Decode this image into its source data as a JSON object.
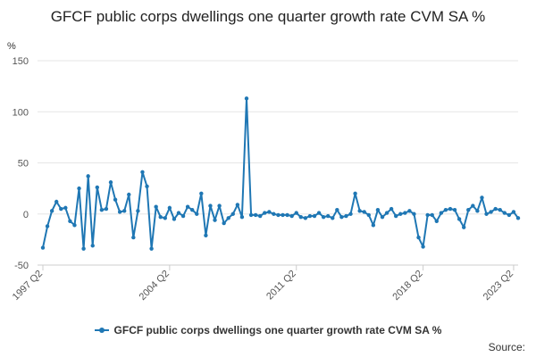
{
  "chart_data": {
    "type": "line",
    "title": "GFCF public corps dwellings one quarter growth rate CVM SA %",
    "ylabel": "%",
    "xlabel": "",
    "ylim": [
      -50,
      150
    ],
    "yticks": [
      -50,
      0,
      50,
      100,
      150
    ],
    "xticks": [
      "1997 Q2",
      "2004 Q2",
      "2011 Q2",
      "2018 Q2",
      "2023 Q2"
    ],
    "color": "#1f77b4",
    "series": [
      {
        "name": "GFCF public corps dwellings one quarter growth rate CVM SA %",
        "start": "1997 Q2",
        "values": [
          -33,
          -12,
          3,
          12,
          5,
          6,
          -7,
          -11,
          25,
          -34,
          37,
          -31,
          26,
          4,
          5,
          31,
          14,
          2,
          3,
          19,
          -23,
          3,
          41,
          27,
          -34,
          7,
          -3,
          -4,
          6,
          -5,
          1,
          -2,
          7,
          4,
          0,
          20,
          -21,
          8,
          -6,
          8,
          -9,
          -4,
          0,
          9,
          -3,
          113,
          -1,
          -1,
          -2,
          1,
          2,
          0,
          -1,
          -1,
          -1,
          -2,
          1,
          -3,
          -4,
          -2,
          -2,
          1,
          -3,
          -2,
          -4,
          4,
          -3,
          -2,
          0,
          20,
          3,
          2,
          -1,
          -11,
          4,
          -3,
          1,
          5,
          -2,
          0,
          1,
          3,
          0,
          -23,
          -32,
          -1,
          -1,
          -7,
          1,
          4,
          5,
          4,
          -5,
          -13,
          4,
          8,
          3,
          16,
          0,
          2,
          5,
          4,
          1,
          -1,
          2,
          -4
        ]
      }
    ]
  },
  "legend": {
    "label": "GFCF public corps dwellings one quarter growth rate CVM SA %"
  },
  "footer": {
    "source_label": "Source:"
  }
}
